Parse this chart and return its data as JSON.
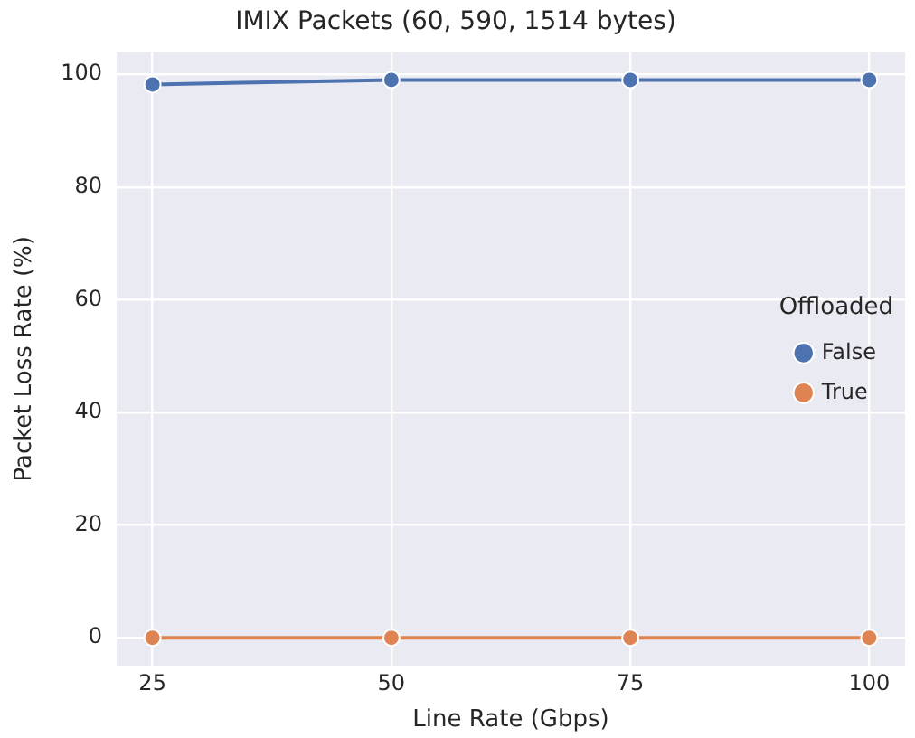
{
  "chart_data": {
    "type": "line",
    "title": "IMIX Packets (60, 590, 1514 bytes)",
    "xlabel": "Line Rate (Gbps)",
    "ylabel": "Packet Loss Rate (%)",
    "legend_title": "Offloaded",
    "x": [
      25,
      50,
      75,
      100
    ],
    "series": [
      {
        "name": "False",
        "color": "#4c72b0",
        "values": [
          98.2,
          99,
          99,
          99
        ]
      },
      {
        "name": "True",
        "color": "#dd8452",
        "values": [
          0,
          0,
          0,
          0
        ]
      }
    ],
    "xlim": [
      21.25,
      103.75
    ],
    "xticks": [
      25,
      50,
      75,
      100
    ],
    "ylim": [
      -4.95,
      103.95
    ],
    "yticks": [
      0,
      20,
      40,
      60,
      80,
      100
    ],
    "grid": true,
    "legend": "right",
    "marker": "circle",
    "line_style": "solid"
  }
}
